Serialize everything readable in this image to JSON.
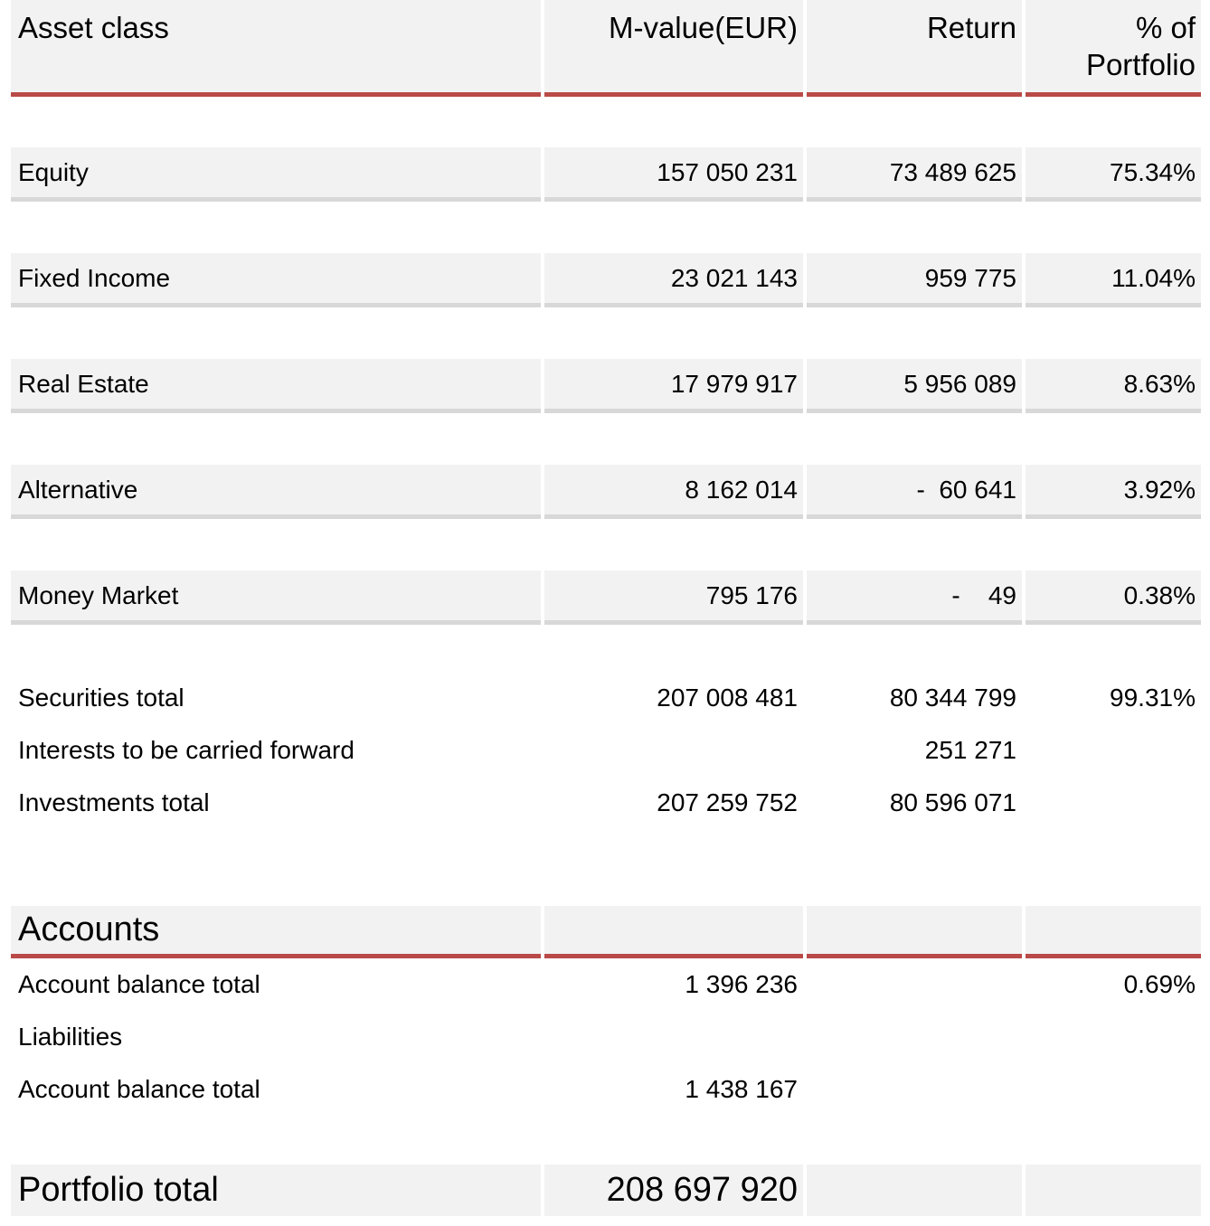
{
  "header": {
    "col_asset_class": "Asset class",
    "col_m_value": "M-value(EUR)",
    "col_return": "Return",
    "col_pct": "% of Portfolio"
  },
  "asset_rows": [
    {
      "name": "Equity",
      "m_value": "157 050 231",
      "return": "73 489 625",
      "pct": "75.34%"
    },
    {
      "name": "Fixed Income",
      "m_value": "23 021 143",
      "return": "959 775",
      "pct": "11.04%"
    },
    {
      "name": "Real Estate",
      "m_value": "17 979 917",
      "return": "5 956 089",
      "pct": "8.63%"
    },
    {
      "name": "Alternative",
      "m_value": "8 162 014",
      "return": "-  60 641",
      "pct": "3.92%"
    },
    {
      "name": "Money Market",
      "m_value": "795 176",
      "return": "-    49",
      "pct": "0.38%"
    }
  ],
  "summary_rows": [
    {
      "name": "Securities total",
      "m_value": "207 008 481",
      "return": "80 344 799",
      "pct": "99.31%"
    },
    {
      "name": "Interests to be carried forward",
      "m_value": "",
      "return": "251 271",
      "pct": ""
    },
    {
      "name": "Investments total",
      "m_value": "207 259 752",
      "return": "80 596 071",
      "pct": ""
    }
  ],
  "accounts": {
    "title": "Accounts",
    "rows": [
      {
        "name": "Account balance total",
        "m_value": "1 396 236",
        "return": "",
        "pct": "0.69%"
      },
      {
        "name": "Liabilities",
        "m_value": "",
        "return": "",
        "pct": ""
      },
      {
        "name": "Account balance total",
        "m_value": "1 438 167",
        "return": "",
        "pct": ""
      }
    ]
  },
  "portfolio_total": {
    "label": "Portfolio total",
    "value": "208 697 920"
  },
  "colors": {
    "band_background": "#f2f2f2",
    "rule_red": "#b94a47",
    "row_border_gray": "#d8d8d8",
    "text": "#000000"
  }
}
